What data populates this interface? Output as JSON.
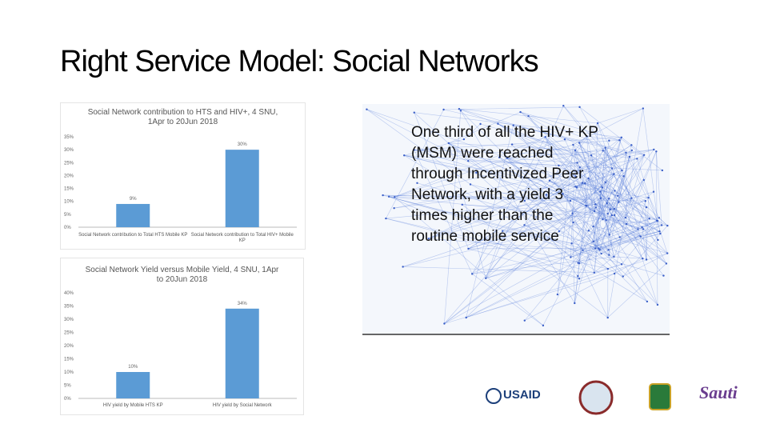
{
  "title": "Right Service Model: Social Networks",
  "chart_data": [
    {
      "type": "bar",
      "title": "Social Network contribution to HTS and HIV+, 4 SNU, 1Apr to 20Jun 2018",
      "categories": [
        "Social Network contribution to Total HTS Mobile KP",
        "Social Network contribution to Total HIV+ Mobile KP"
      ],
      "values": [
        9,
        30
      ],
      "value_labels": [
        "9%",
        "30%"
      ],
      "color": "#5b9bd5",
      "ylim": [
        0,
        35
      ],
      "yticks": [
        {
          "value": 0,
          "label": "0%"
        },
        {
          "value": 5,
          "label": "5%"
        },
        {
          "value": 10,
          "label": "10%"
        },
        {
          "value": 15,
          "label": "15%"
        },
        {
          "value": 20,
          "label": "20%"
        },
        {
          "value": 25,
          "label": "25%"
        },
        {
          "value": 30,
          "label": "30%"
        },
        {
          "value": 35,
          "label": "35%"
        }
      ],
      "grid": false
    },
    {
      "type": "bar",
      "title": "Social Network Yield versus Mobile Yield, 4 SNU, 1Apr to 20Jun 2018",
      "categories": [
        "HIV yield by Mobile HTS KP",
        "HIV yield by Social Network"
      ],
      "values": [
        10,
        34
      ],
      "value_labels": [
        "10%",
        "34%"
      ],
      "color": "#5b9bd5",
      "ylim": [
        0,
        40
      ],
      "yticks": [
        {
          "value": 0,
          "label": "0%"
        },
        {
          "value": 5,
          "label": "5%"
        },
        {
          "value": 10,
          "label": "10%"
        },
        {
          "value": 15,
          "label": "15%"
        },
        {
          "value": 20,
          "label": "20%"
        },
        {
          "value": 25,
          "label": "25%"
        },
        {
          "value": 30,
          "label": "30%"
        },
        {
          "value": 35,
          "label": "35%"
        },
        {
          "value": 40,
          "label": "40%"
        }
      ],
      "grid": false
    }
  ],
  "body_lines": [
    "One third of all the HIV+ KP",
    "(MSM) were reached",
    "through Incentivized Peer",
    "Network, with a yield 3",
    "times higher than the",
    "routine mobile service"
  ],
  "logos": [
    "USAID",
    "Sauti"
  ]
}
